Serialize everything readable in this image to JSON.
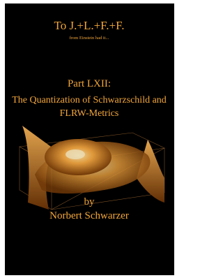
{
  "cover": {
    "dedication": "To J.+L.+F.+F.",
    "tagline": "from Einstein had it...",
    "part": "Part LXII:",
    "title_lines": [
      "The Quantization of Schwarzschild and",
      "FLRW-Metrics"
    ],
    "by": "by",
    "author": "Norbert Schwarzer"
  }
}
